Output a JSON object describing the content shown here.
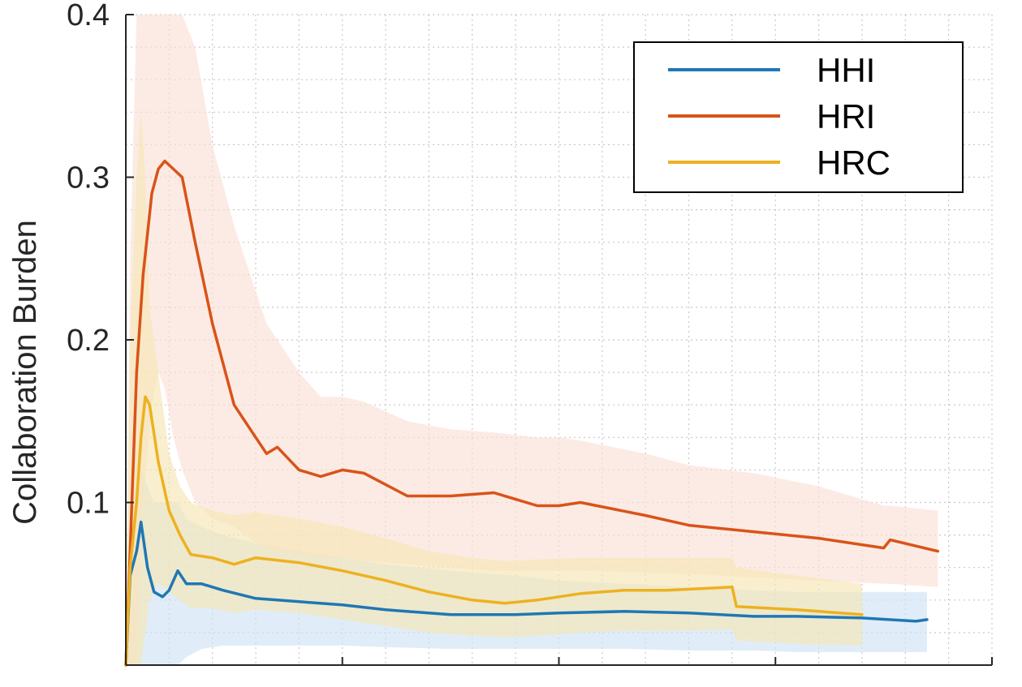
{
  "chart_data": {
    "type": "line",
    "title": "",
    "xlabel": "",
    "ylabel": "Collaboration Burden",
    "xlim": [
      0,
      4
    ],
    "ylim": [
      0,
      0.4
    ],
    "yticks": [
      0.1,
      0.2,
      0.3,
      0.4
    ],
    "ytick_labels": [
      "0.1",
      "0.2",
      "0.3",
      "0.4"
    ],
    "xticks": [
      1,
      2,
      3,
      4
    ],
    "grid": "dotted",
    "legend_position": "top-right",
    "series": [
      {
        "name": "HHI",
        "color": "#1f77b4",
        "band_color": "#cfe3f5",
        "x": [
          0.0,
          0.02,
          0.05,
          0.07,
          0.1,
          0.13,
          0.17,
          0.2,
          0.24,
          0.28,
          0.35,
          0.45,
          0.6,
          0.8,
          1.0,
          1.2,
          1.5,
          1.8,
          2.0,
          2.3,
          2.6,
          2.9,
          3.1,
          3.4,
          3.65,
          3.7
        ],
        "y": [
          0.0,
          0.055,
          0.07,
          0.088,
          0.06,
          0.045,
          0.042,
          0.046,
          0.058,
          0.05,
          0.05,
          0.046,
          0.041,
          0.039,
          0.037,
          0.034,
          0.031,
          0.031,
          0.032,
          0.033,
          0.032,
          0.03,
          0.03,
          0.029,
          0.027,
          0.028
        ],
        "upper": [
          0.0,
          0.08,
          0.1,
          0.12,
          0.11,
          0.1,
          0.1,
          0.1,
          0.1,
          0.09,
          0.085,
          0.08,
          0.075,
          0.07,
          0.066,
          0.062,
          0.058,
          0.055,
          0.052,
          0.05,
          0.048,
          0.046,
          0.045,
          0.045,
          0.045,
          0.045
        ],
        "lower": [
          0.0,
          0.0,
          0.0,
          0.0,
          0.0,
          0.0,
          0.0,
          0.0,
          0.0,
          0.005,
          0.01,
          0.012,
          0.012,
          0.012,
          0.012,
          0.011,
          0.01,
          0.01,
          0.01,
          0.01,
          0.009,
          0.009,
          0.008,
          0.008,
          0.008,
          0.008
        ]
      },
      {
        "name": "HRI",
        "color": "#d95319",
        "band_color": "#fbe0d5",
        "x": [
          0.0,
          0.02,
          0.05,
          0.08,
          0.12,
          0.15,
          0.18,
          0.22,
          0.26,
          0.32,
          0.4,
          0.5,
          0.6,
          0.65,
          0.7,
          0.8,
          0.9,
          1.0,
          1.1,
          1.3,
          1.5,
          1.7,
          1.9,
          2.0,
          2.1,
          2.4,
          2.6,
          2.9,
          3.2,
          3.5,
          3.53,
          3.75
        ],
        "y": [
          0.0,
          0.07,
          0.18,
          0.24,
          0.29,
          0.305,
          0.31,
          0.305,
          0.3,
          0.26,
          0.21,
          0.16,
          0.14,
          0.13,
          0.134,
          0.12,
          0.116,
          0.12,
          0.118,
          0.104,
          0.104,
          0.106,
          0.098,
          0.098,
          0.1,
          0.092,
          0.086,
          0.082,
          0.078,
          0.072,
          0.077,
          0.07
        ],
        "upper": [
          0.0,
          0.25,
          0.4,
          0.4,
          0.4,
          0.4,
          0.4,
          0.4,
          0.4,
          0.38,
          0.32,
          0.27,
          0.23,
          0.21,
          0.2,
          0.18,
          0.165,
          0.165,
          0.162,
          0.15,
          0.145,
          0.143,
          0.14,
          0.14,
          0.138,
          0.13,
          0.123,
          0.118,
          0.11,
          0.098,
          0.098,
          0.095
        ],
        "lower": [
          0.0,
          0.0,
          0.0,
          0.1,
          0.16,
          0.18,
          0.17,
          0.14,
          0.12,
          0.1,
          0.09,
          0.085,
          0.075,
          0.072,
          0.07,
          0.068,
          0.066,
          0.066,
          0.064,
          0.062,
          0.06,
          0.058,
          0.058,
          0.058,
          0.058,
          0.057,
          0.056,
          0.054,
          0.052,
          0.05,
          0.05,
          0.048
        ]
      },
      {
        "name": "HRC",
        "color": "#edb120",
        "band_color": "#f6e6b4",
        "x": [
          0.0,
          0.02,
          0.05,
          0.07,
          0.09,
          0.11,
          0.15,
          0.2,
          0.25,
          0.3,
          0.4,
          0.5,
          0.6,
          0.8,
          1.0,
          1.2,
          1.4,
          1.6,
          1.75,
          1.9,
          2.1,
          2.3,
          2.5,
          2.8,
          2.82,
          3.1,
          3.4
        ],
        "y": [
          0.0,
          0.06,
          0.1,
          0.14,
          0.165,
          0.16,
          0.125,
          0.095,
          0.08,
          0.068,
          0.066,
          0.062,
          0.066,
          0.063,
          0.058,
          0.052,
          0.045,
          0.04,
          0.038,
          0.04,
          0.044,
          0.046,
          0.046,
          0.048,
          0.036,
          0.034,
          0.031
        ],
        "upper": [
          0.0,
          0.2,
          0.3,
          0.34,
          0.3,
          0.22,
          0.18,
          0.13,
          0.11,
          0.1,
          0.095,
          0.092,
          0.094,
          0.09,
          0.085,
          0.078,
          0.07,
          0.066,
          0.064,
          0.065,
          0.066,
          0.066,
          0.066,
          0.066,
          0.06,
          0.055,
          0.05
        ],
        "lower": [
          0.0,
          0.0,
          0.0,
          0.0,
          0.02,
          0.04,
          0.05,
          0.045,
          0.04,
          0.035,
          0.035,
          0.032,
          0.034,
          0.032,
          0.028,
          0.024,
          0.02,
          0.018,
          0.017,
          0.018,
          0.02,
          0.021,
          0.021,
          0.022,
          0.015,
          0.013,
          0.012
        ]
      }
    ]
  }
}
